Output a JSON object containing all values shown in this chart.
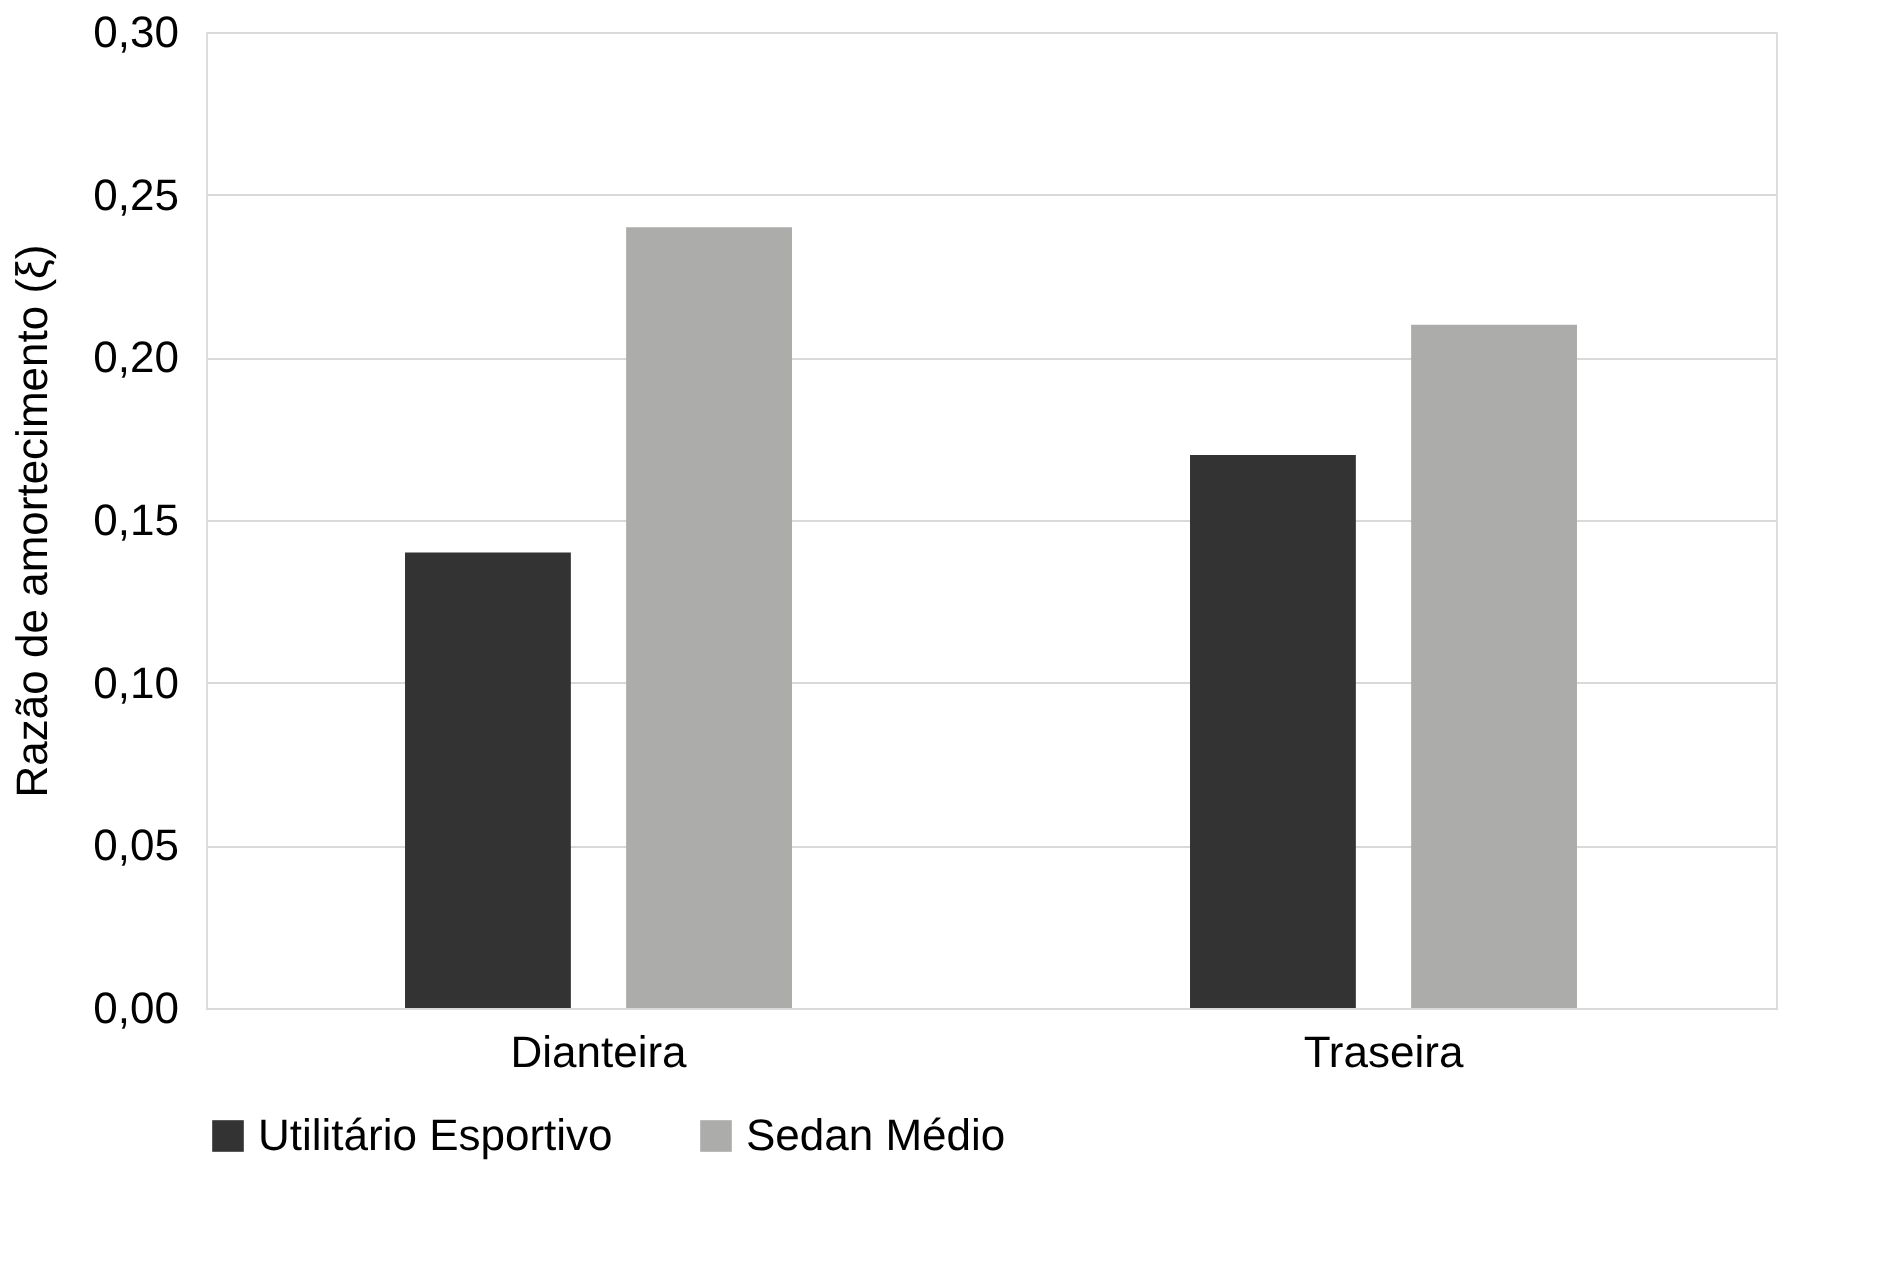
{
  "chart_data": {
    "type": "bar",
    "ylabel": "Razão de amortecimento (ξ)",
    "categories": [
      "Dianteira",
      "Traseira"
    ],
    "series": [
      {
        "name": "Utilitário Esportivo",
        "color": "#333333",
        "values": [
          0.14,
          0.17
        ]
      },
      {
        "name": "Sedan Médio",
        "color": "#acacab",
        "values": [
          0.24,
          0.21
        ]
      }
    ],
    "ylim": [
      0,
      0.3
    ],
    "yticks": [
      {
        "value": 0,
        "label": "0,00"
      },
      {
        "value": 0.05,
        "label": "0,05"
      },
      {
        "value": 0.1,
        "label": "0,10"
      },
      {
        "value": 0.15,
        "label": "0,15"
      },
      {
        "value": 0.2,
        "label": "0,20"
      },
      {
        "value": 0.25,
        "label": "0,25"
      },
      {
        "value": 0.3,
        "label": "0,30"
      }
    ],
    "grid": "y",
    "legend": "bottom"
  }
}
